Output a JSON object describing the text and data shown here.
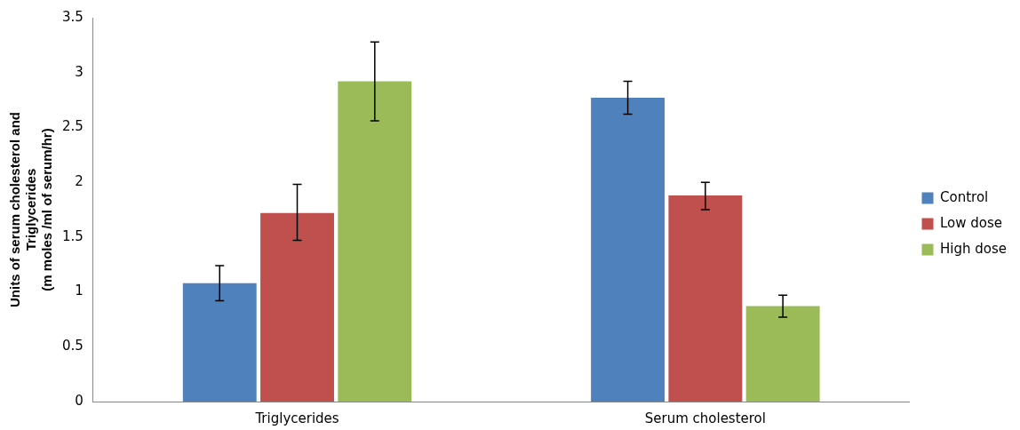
{
  "chart_data": {
    "type": "bar",
    "ylabel": "Units of serum cholesterol and\nTriglycerides\n(m moles /ml of serum/hr)",
    "categories": [
      "Triglycerides",
      "Serum cholesterol"
    ],
    "series": [
      {
        "name": "Control",
        "color": "#4f81bd",
        "values": [
          1.08,
          2.77
        ],
        "errors": [
          0.16,
          0.15
        ]
      },
      {
        "name": "Low dose",
        "color": "#c0504d",
        "values": [
          1.72,
          1.88
        ],
        "errors": [
          [
            1.47,
            1.98
          ],
          [
            1.75,
            2.0
          ]
        ]
      },
      {
        "name": "High dose",
        "color": "#9bbb59",
        "values": [
          2.92,
          0.87
        ],
        "errors": [
          0.36,
          0.1
        ]
      }
    ],
    "ylim": [
      0,
      3.5
    ],
    "yticks": [
      0,
      0.5,
      1,
      1.5,
      2,
      2.5,
      3,
      3.5
    ],
    "grid": false,
    "legend": "right"
  }
}
